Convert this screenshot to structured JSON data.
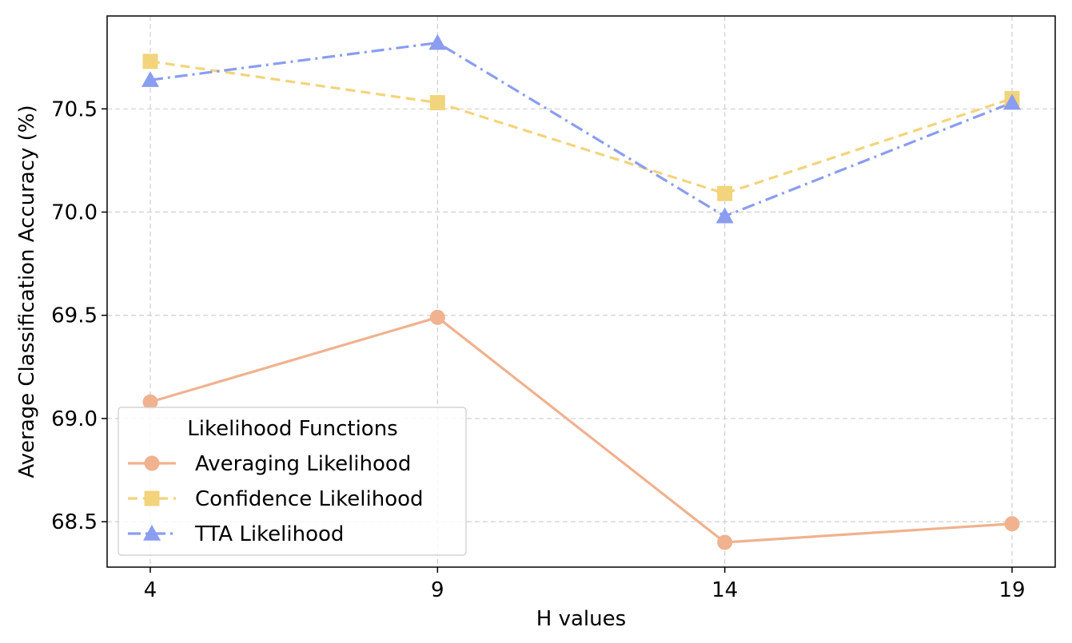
{
  "chart_data": {
    "type": "line",
    "title": "",
    "xlabel": "H values",
    "ylabel": "Average Classification Accuracy (%)",
    "x": [
      4,
      9,
      14,
      19
    ],
    "x_tick_labels": [
      "4",
      "9",
      "14",
      "19"
    ],
    "y_ticks": [
      68.5,
      69.0,
      69.5,
      70.0,
      70.5
    ],
    "y_tick_labels": [
      "68.5",
      "69.0",
      "69.5",
      "70.0",
      "70.5"
    ],
    "ylim": [
      68.28,
      70.95
    ],
    "grid": true,
    "legend": {
      "title": "Likelihood Functions",
      "placement": "lower-left"
    },
    "series": [
      {
        "name": "Averaging Likelihood",
        "values": [
          69.08,
          69.49,
          68.4,
          68.49
        ],
        "color": "#f0b28f",
        "marker": "circle",
        "line_style": "solid"
      },
      {
        "name": "Confidence Likelihood",
        "values": [
          70.73,
          70.53,
          70.09,
          70.55
        ],
        "color": "#f2d47c",
        "marker": "square",
        "line_style": "dashed"
      },
      {
        "name": "TTA Likelihood",
        "values": [
          70.64,
          70.82,
          69.98,
          70.53
        ],
        "color": "#8a9df0",
        "marker": "triangle",
        "line_style": "dashdot"
      }
    ]
  }
}
